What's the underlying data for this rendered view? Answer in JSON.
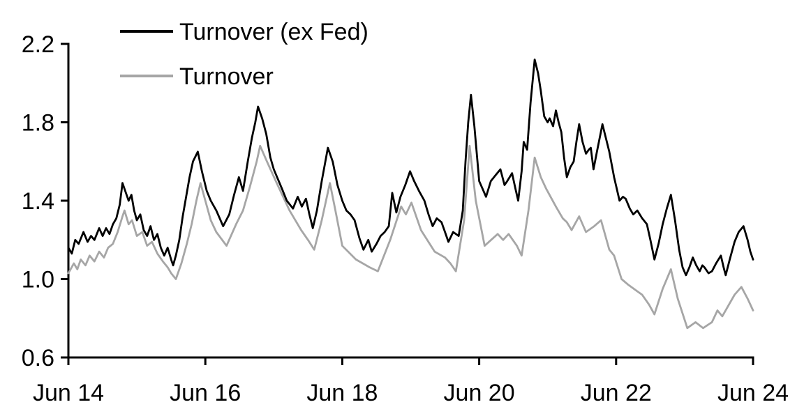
{
  "chart_data": {
    "type": "line",
    "title": "",
    "xlabel": "",
    "ylabel": "",
    "grid": false,
    "x_axis": {
      "lim": [
        0,
        10
      ],
      "ticks": [
        0,
        2,
        4,
        6,
        8,
        10
      ],
      "tick_labels": [
        "Jun 14",
        "Jun 16",
        "Jun 18",
        "Jun 20",
        "Jun 22",
        "Jun 24"
      ]
    },
    "y_axis": {
      "lim": [
        0.6,
        2.2
      ],
      "ticks": [
        0.6,
        1.0,
        1.4,
        1.8,
        2.2
      ],
      "tick_labels": [
        "0.6",
        "1.0",
        "1.4",
        "1.8",
        "2.2"
      ]
    },
    "legend": {
      "position": "top-left-inside",
      "entries": [
        {
          "label": "Turnover (ex Fed)",
          "color": "#000000"
        },
        {
          "label": "Turnover",
          "color": "#a6a6a6"
        }
      ]
    },
    "series": [
      {
        "name": "Turnover (ex Fed)",
        "color": "#000000",
        "stroke_width": 2.8,
        "points": [
          [
            0.0,
            1.16
          ],
          [
            0.05,
            1.13
          ],
          [
            0.1,
            1.2
          ],
          [
            0.15,
            1.18
          ],
          [
            0.22,
            1.24
          ],
          [
            0.28,
            1.19
          ],
          [
            0.33,
            1.22
          ],
          [
            0.38,
            1.2
          ],
          [
            0.45,
            1.26
          ],
          [
            0.5,
            1.22
          ],
          [
            0.55,
            1.26
          ],
          [
            0.6,
            1.23
          ],
          [
            0.65,
            1.28
          ],
          [
            0.7,
            1.31
          ],
          [
            0.75,
            1.38
          ],
          [
            0.79,
            1.49
          ],
          [
            0.84,
            1.44
          ],
          [
            0.88,
            1.4
          ],
          [
            0.92,
            1.43
          ],
          [
            0.96,
            1.35
          ],
          [
            1.0,
            1.3
          ],
          [
            1.05,
            1.33
          ],
          [
            1.1,
            1.25
          ],
          [
            1.15,
            1.22
          ],
          [
            1.2,
            1.27
          ],
          [
            1.25,
            1.2
          ],
          [
            1.3,
            1.23
          ],
          [
            1.35,
            1.16
          ],
          [
            1.4,
            1.12
          ],
          [
            1.45,
            1.16
          ],
          [
            1.5,
            1.1
          ],
          [
            1.53,
            1.07
          ],
          [
            1.57,
            1.12
          ],
          [
            1.62,
            1.2
          ],
          [
            1.67,
            1.32
          ],
          [
            1.72,
            1.42
          ],
          [
            1.77,
            1.52
          ],
          [
            1.82,
            1.6
          ],
          [
            1.89,
            1.65
          ],
          [
            1.95,
            1.55
          ],
          [
            2.02,
            1.45
          ],
          [
            2.08,
            1.4
          ],
          [
            2.16,
            1.35
          ],
          [
            2.26,
            1.27
          ],
          [
            2.35,
            1.33
          ],
          [
            2.42,
            1.43
          ],
          [
            2.49,
            1.52
          ],
          [
            2.55,
            1.45
          ],
          [
            2.62,
            1.6
          ],
          [
            2.68,
            1.72
          ],
          [
            2.73,
            1.8
          ],
          [
            2.77,
            1.88
          ],
          [
            2.83,
            1.82
          ],
          [
            2.89,
            1.74
          ],
          [
            2.95,
            1.62
          ],
          [
            3.0,
            1.56
          ],
          [
            3.06,
            1.51
          ],
          [
            3.12,
            1.46
          ],
          [
            3.19,
            1.4
          ],
          [
            3.28,
            1.36
          ],
          [
            3.35,
            1.42
          ],
          [
            3.41,
            1.37
          ],
          [
            3.47,
            1.41
          ],
          [
            3.52,
            1.33
          ],
          [
            3.57,
            1.26
          ],
          [
            3.63,
            1.35
          ],
          [
            3.7,
            1.5
          ],
          [
            3.79,
            1.67
          ],
          [
            3.86,
            1.6
          ],
          [
            3.93,
            1.48
          ],
          [
            4.0,
            1.4
          ],
          [
            4.06,
            1.35
          ],
          [
            4.12,
            1.33
          ],
          [
            4.18,
            1.3
          ],
          [
            4.25,
            1.21
          ],
          [
            4.31,
            1.15
          ],
          [
            4.38,
            1.2
          ],
          [
            4.43,
            1.14
          ],
          [
            4.5,
            1.18
          ],
          [
            4.56,
            1.22
          ],
          [
            4.62,
            1.24
          ],
          [
            4.68,
            1.27
          ],
          [
            4.73,
            1.44
          ],
          [
            4.79,
            1.34
          ],
          [
            4.85,
            1.42
          ],
          [
            4.92,
            1.48
          ],
          [
            4.99,
            1.55
          ],
          [
            5.05,
            1.5
          ],
          [
            5.12,
            1.45
          ],
          [
            5.2,
            1.4
          ],
          [
            5.26,
            1.33
          ],
          [
            5.32,
            1.27
          ],
          [
            5.38,
            1.31
          ],
          [
            5.45,
            1.29
          ],
          [
            5.5,
            1.24
          ],
          [
            5.55,
            1.19
          ],
          [
            5.62,
            1.24
          ],
          [
            5.7,
            1.22
          ],
          [
            5.76,
            1.35
          ],
          [
            5.8,
            1.6
          ],
          [
            5.84,
            1.8
          ],
          [
            5.88,
            1.94
          ],
          [
            5.93,
            1.78
          ],
          [
            6.0,
            1.5
          ],
          [
            6.05,
            1.46
          ],
          [
            6.1,
            1.42
          ],
          [
            6.17,
            1.5
          ],
          [
            6.24,
            1.53
          ],
          [
            6.31,
            1.56
          ],
          [
            6.37,
            1.48
          ],
          [
            6.41,
            1.5
          ],
          [
            6.48,
            1.54
          ],
          [
            6.53,
            1.46
          ],
          [
            6.57,
            1.4
          ],
          [
            6.62,
            1.55
          ],
          [
            6.65,
            1.7
          ],
          [
            6.7,
            1.66
          ],
          [
            6.75,
            1.9
          ],
          [
            6.81,
            2.12
          ],
          [
            6.86,
            2.05
          ],
          [
            6.9,
            1.96
          ],
          [
            6.95,
            1.83
          ],
          [
            7.0,
            1.8
          ],
          [
            7.03,
            1.82
          ],
          [
            7.08,
            1.78
          ],
          [
            7.12,
            1.86
          ],
          [
            7.16,
            1.8
          ],
          [
            7.2,
            1.75
          ],
          [
            7.24,
            1.62
          ],
          [
            7.28,
            1.52
          ],
          [
            7.33,
            1.57
          ],
          [
            7.38,
            1.6
          ],
          [
            7.42,
            1.7
          ],
          [
            7.46,
            1.79
          ],
          [
            7.51,
            1.7
          ],
          [
            7.56,
            1.64
          ],
          [
            7.6,
            1.66
          ],
          [
            7.63,
            1.67
          ],
          [
            7.67,
            1.56
          ],
          [
            7.72,
            1.65
          ],
          [
            7.8,
            1.79
          ],
          [
            7.85,
            1.72
          ],
          [
            7.9,
            1.65
          ],
          [
            7.97,
            1.52
          ],
          [
            8.05,
            1.4
          ],
          [
            8.1,
            1.42
          ],
          [
            8.14,
            1.41
          ],
          [
            8.2,
            1.36
          ],
          [
            8.25,
            1.33
          ],
          [
            8.31,
            1.35
          ],
          [
            8.38,
            1.31
          ],
          [
            8.45,
            1.28
          ],
          [
            8.5,
            1.2
          ],
          [
            8.56,
            1.1
          ],
          [
            8.62,
            1.18
          ],
          [
            8.68,
            1.28
          ],
          [
            8.74,
            1.36
          ],
          [
            8.8,
            1.43
          ],
          [
            8.86,
            1.3
          ],
          [
            8.92,
            1.15
          ],
          [
            8.97,
            1.06
          ],
          [
            9.02,
            1.02
          ],
          [
            9.07,
            1.06
          ],
          [
            9.12,
            1.11
          ],
          [
            9.17,
            1.07
          ],
          [
            9.22,
            1.04
          ],
          [
            9.26,
            1.07
          ],
          [
            9.29,
            1.06
          ],
          [
            9.35,
            1.03
          ],
          [
            9.4,
            1.04
          ],
          [
            9.46,
            1.08
          ],
          [
            9.53,
            1.12
          ],
          [
            9.57,
            1.06
          ],
          [
            9.6,
            1.02
          ],
          [
            9.66,
            1.1
          ],
          [
            9.73,
            1.19
          ],
          [
            9.79,
            1.24
          ],
          [
            9.86,
            1.27
          ],
          [
            9.92,
            1.2
          ],
          [
            9.96,
            1.14
          ],
          [
            10.0,
            1.1
          ]
        ]
      },
      {
        "name": "Turnover",
        "color": "#a6a6a6",
        "stroke_width": 2.8,
        "points": [
          [
            0.0,
            1.03
          ],
          [
            0.08,
            1.08
          ],
          [
            0.13,
            1.05
          ],
          [
            0.18,
            1.1
          ],
          [
            0.25,
            1.07
          ],
          [
            0.31,
            1.12
          ],
          [
            0.38,
            1.09
          ],
          [
            0.45,
            1.14
          ],
          [
            0.52,
            1.11
          ],
          [
            0.58,
            1.16
          ],
          [
            0.65,
            1.18
          ],
          [
            0.72,
            1.24
          ],
          [
            0.79,
            1.32
          ],
          [
            0.82,
            1.35
          ],
          [
            0.88,
            1.28
          ],
          [
            0.93,
            1.3
          ],
          [
            1.0,
            1.22
          ],
          [
            1.08,
            1.24
          ],
          [
            1.15,
            1.17
          ],
          [
            1.22,
            1.19
          ],
          [
            1.3,
            1.13
          ],
          [
            1.38,
            1.09
          ],
          [
            1.45,
            1.06
          ],
          [
            1.5,
            1.03
          ],
          [
            1.57,
            1.0
          ],
          [
            1.65,
            1.08
          ],
          [
            1.73,
            1.18
          ],
          [
            1.8,
            1.28
          ],
          [
            1.87,
            1.4
          ],
          [
            1.93,
            1.49
          ],
          [
            2.0,
            1.4
          ],
          [
            2.08,
            1.3
          ],
          [
            2.16,
            1.24
          ],
          [
            2.31,
            1.17
          ],
          [
            2.45,
            1.28
          ],
          [
            2.55,
            1.35
          ],
          [
            2.65,
            1.47
          ],
          [
            2.75,
            1.6
          ],
          [
            2.8,
            1.68
          ],
          [
            2.9,
            1.6
          ],
          [
            3.03,
            1.5
          ],
          [
            3.23,
            1.35
          ],
          [
            3.4,
            1.25
          ],
          [
            3.5,
            1.2
          ],
          [
            3.59,
            1.15
          ],
          [
            3.7,
            1.3
          ],
          [
            3.82,
            1.49
          ],
          [
            3.9,
            1.35
          ],
          [
            4.0,
            1.17
          ],
          [
            4.2,
            1.1
          ],
          [
            4.4,
            1.06
          ],
          [
            4.52,
            1.04
          ],
          [
            4.7,
            1.2
          ],
          [
            4.86,
            1.37
          ],
          [
            4.93,
            1.33
          ],
          [
            5.01,
            1.39
          ],
          [
            5.15,
            1.25
          ],
          [
            5.35,
            1.14
          ],
          [
            5.5,
            1.11
          ],
          [
            5.58,
            1.08
          ],
          [
            5.66,
            1.04
          ],
          [
            5.78,
            1.3
          ],
          [
            5.86,
            1.68
          ],
          [
            5.95,
            1.4
          ],
          [
            6.08,
            1.17
          ],
          [
            6.27,
            1.23
          ],
          [
            6.35,
            1.2
          ],
          [
            6.43,
            1.23
          ],
          [
            6.55,
            1.17
          ],
          [
            6.62,
            1.12
          ],
          [
            6.72,
            1.35
          ],
          [
            6.81,
            1.62
          ],
          [
            6.9,
            1.52
          ],
          [
            6.98,
            1.46
          ],
          [
            7.12,
            1.37
          ],
          [
            7.22,
            1.31
          ],
          [
            7.28,
            1.29
          ],
          [
            7.35,
            1.25
          ],
          [
            7.46,
            1.32
          ],
          [
            7.56,
            1.24
          ],
          [
            7.68,
            1.27
          ],
          [
            7.78,
            1.3
          ],
          [
            7.9,
            1.15
          ],
          [
            7.97,
            1.12
          ],
          [
            8.08,
            1.0
          ],
          [
            8.18,
            0.97
          ],
          [
            8.3,
            0.94
          ],
          [
            8.38,
            0.92
          ],
          [
            8.48,
            0.87
          ],
          [
            8.56,
            0.82
          ],
          [
            8.68,
            0.95
          ],
          [
            8.8,
            1.05
          ],
          [
            8.9,
            0.9
          ],
          [
            9.04,
            0.75
          ],
          [
            9.16,
            0.78
          ],
          [
            9.27,
            0.75
          ],
          [
            9.4,
            0.78
          ],
          [
            9.48,
            0.84
          ],
          [
            9.55,
            0.81
          ],
          [
            9.73,
            0.92
          ],
          [
            9.83,
            0.96
          ],
          [
            9.92,
            0.9
          ],
          [
            10.0,
            0.84
          ]
        ]
      }
    ]
  }
}
